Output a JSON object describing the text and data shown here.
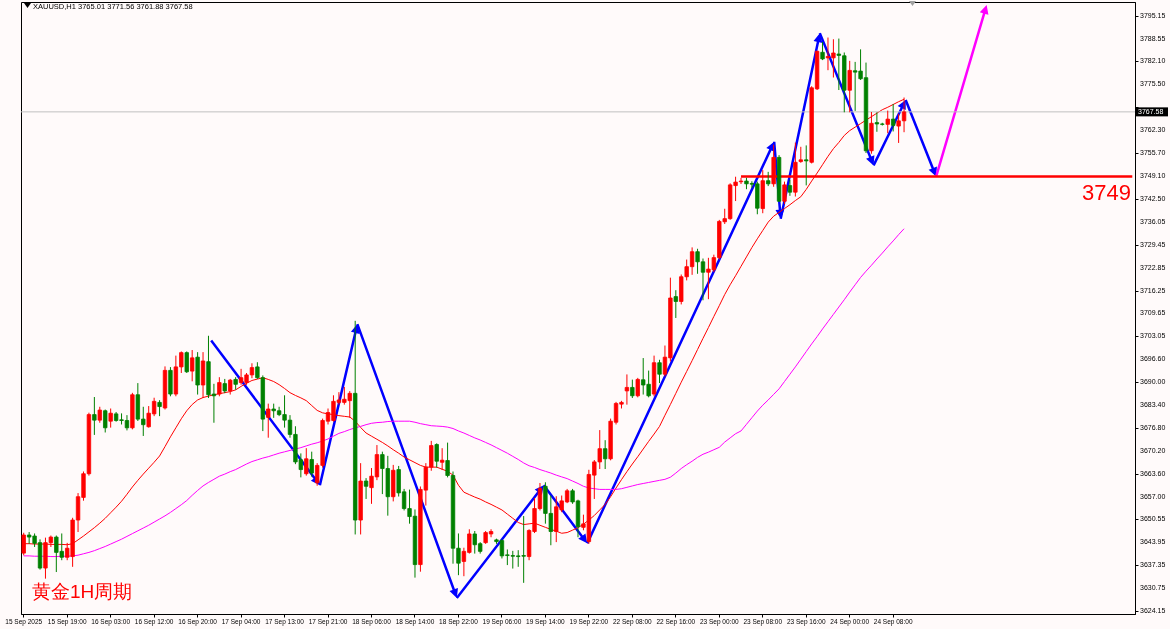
{
  "chart_data": {
    "type": "candlestick",
    "title": "XAUUSD,H1  3765.01 3771.56 3761.88 3767.58",
    "categories": [
      "15 Sep 2025",
      null,
      null,
      null,
      null,
      null,
      null,
      null,
      "15 Sep 19:00",
      null,
      null,
      null,
      null,
      null,
      null,
      null,
      "16 Sep 03:00",
      null,
      null,
      null,
      null,
      null,
      null,
      null,
      "16 Sep 12:00",
      null,
      null,
      null,
      null,
      null,
      null,
      null,
      "16 Sep 20:00",
      null,
      null,
      null,
      null,
      null,
      null,
      null,
      "17 Sep 04:00",
      null,
      null,
      null,
      null,
      null,
      null,
      null,
      "17 Sep 13:00",
      null,
      null,
      null,
      null,
      null,
      null,
      null,
      "17 Sep 21:00",
      null,
      null,
      null,
      null,
      null,
      null,
      null,
      "18 Sep 06:00",
      null,
      null,
      null,
      null,
      null,
      null,
      null,
      "18 Sep 14:00",
      null,
      null,
      null,
      null,
      null,
      null,
      null,
      "18 Sep 22:00",
      null,
      null,
      null,
      null,
      null,
      null,
      null,
      "19 Sep 06:00",
      null,
      null,
      null,
      null,
      null,
      null,
      null,
      "19 Sep 14:00",
      null,
      null,
      null,
      null,
      null,
      null,
      null,
      "19 Sep 22:00",
      null,
      null,
      null,
      null,
      null,
      null,
      null,
      "22 Sep 08:00",
      null,
      null,
      null,
      null,
      null,
      null,
      null,
      "22 Sep 16:00",
      null,
      null,
      null,
      null,
      null,
      null,
      null,
      "23 Sep 00:00",
      null,
      null,
      null,
      null,
      null,
      null,
      null,
      "23 Sep 08:00",
      null,
      null,
      null,
      null,
      null,
      null,
      null,
      "23 Sep 16:00",
      null,
      null,
      null,
      null,
      null,
      null,
      null,
      "24 Sep 00:00",
      null,
      null,
      null,
      null,
      null,
      null,
      null,
      "24 Sep 08:00",
      null,
      null,
      null,
      null,
      null,
      null,
      null,
      null,
      null,
      null,
      null,
      null,
      null,
      null,
      null,
      null,
      null,
      null,
      null,
      null,
      null,
      null,
      null,
      null,
      null,
      null,
      null,
      null,
      null,
      null,
      null,
      null,
      null,
      null,
      null,
      null,
      null,
      null,
      null,
      null,
      null,
      null,
      null,
      null
    ],
    "ohlc": [
      [
        3640.8,
        3646.5,
        3640.3,
        3646.0
      ],
      [
        3646.0,
        3646.7,
        3643.6,
        3645.4
      ],
      [
        3645.7,
        3646.3,
        3642.7,
        3643.6
      ],
      [
        3643.8,
        3644.6,
        3636.2,
        3636.5
      ],
      [
        3636.5,
        3645.1,
        3633.6,
        3643.8
      ],
      [
        3643.8,
        3645.7,
        3642.7,
        3645.4
      ],
      [
        3645.4,
        3645.7,
        3635.5,
        3641.0
      ],
      [
        3641.3,
        3646.3,
        3638.9,
        3639.6
      ],
      [
        3639.6,
        3643.6,
        3638.9,
        3642.2
      ],
      [
        3639.8,
        3650.8,
        3637.0,
        3650.3
      ],
      [
        3650.3,
        3657.9,
        3647.0,
        3657.0
      ],
      [
        3656.8,
        3664.1,
        3656.0,
        3663.6
      ],
      [
        3663.6,
        3681.0,
        3663.2,
        3680.6
      ],
      [
        3680.6,
        3685.5,
        3674.9,
        3679.0
      ],
      [
        3679.0,
        3682.7,
        3678.4,
        3681.9
      ],
      [
        3681.7,
        3681.9,
        3675.6,
        3676.8
      ],
      [
        3678.7,
        3682.2,
        3677.0,
        3681.0
      ],
      [
        3680.8,
        3681.2,
        3678.7,
        3678.9
      ],
      [
        3679.1,
        3680.8,
        3677.9,
        3678.9
      ],
      [
        3678.9,
        3680.3,
        3676.2,
        3676.8
      ],
      [
        3676.8,
        3686.7,
        3676.5,
        3686.3
      ],
      [
        3686.3,
        3689.5,
        3678.9,
        3679.3
      ],
      [
        3679.3,
        3682.7,
        3674.6,
        3677.7
      ],
      [
        3677.1,
        3682.9,
        3677.0,
        3681.0
      ],
      [
        3680.8,
        3685.3,
        3680.3,
        3684.4
      ],
      [
        3684.1,
        3684.6,
        3680.3,
        3682.9
      ],
      [
        3682.5,
        3694.3,
        3682.2,
        3693.3
      ],
      [
        3693.3,
        3694.1,
        3686.0,
        3686.5
      ],
      [
        3686.5,
        3697.4,
        3686.0,
        3694.3
      ],
      [
        3694.3,
        3698.6,
        3692.7,
        3698.4
      ],
      [
        3698.4,
        3698.6,
        3692.7,
        3692.9
      ],
      [
        3693.1,
        3699.0,
        3690.3,
        3696.9
      ],
      [
        3697.1,
        3698.4,
        3686.5,
        3689.1
      ],
      [
        3689.1,
        3698.4,
        3685.5,
        3696.0
      ],
      [
        3695.8,
        3703.1,
        3685.5,
        3686.3
      ],
      [
        3686.5,
        3689.3,
        3678.4,
        3686.0
      ],
      [
        3686.5,
        3691.2,
        3686.0,
        3689.8
      ],
      [
        3689.5,
        3690.7,
        3686.9,
        3687.4
      ],
      [
        3687.4,
        3690.7,
        3686.5,
        3690.5
      ],
      [
        3690.7,
        3691.2,
        3687.9,
        3689.3
      ],
      [
        3689.8,
        3693.6,
        3689.3,
        3691.2
      ],
      [
        3689.8,
        3692.4,
        3689.3,
        3692.0
      ],
      [
        3692.0,
        3695.2,
        3691.2,
        3694.1
      ],
      [
        3694.3,
        3695.5,
        3691.0,
        3691.2
      ],
      [
        3691.2,
        3691.7,
        3676.0,
        3679.3
      ],
      [
        3679.8,
        3683.6,
        3674.1,
        3682.2
      ],
      [
        3682.2,
        3683.6,
        3679.8,
        3681.7
      ],
      [
        3681.7,
        3682.7,
        3680.3,
        3680.6
      ],
      [
        3680.6,
        3686.0,
        3677.0,
        3679.0
      ],
      [
        3679.0,
        3680.3,
        3674.1,
        3674.9
      ],
      [
        3674.9,
        3677.1,
        3666.5,
        3667.0
      ],
      [
        3667.6,
        3669.3,
        3662.7,
        3664.8
      ],
      [
        3663.6,
        3670.8,
        3663.2,
        3667.9
      ],
      [
        3667.7,
        3669.8,
        3662.9,
        3663.8
      ],
      [
        3661.0,
        3666.5,
        3660.3,
        3666.0
      ],
      [
        3666.0,
        3679.3,
        3665.5,
        3678.9
      ],
      [
        3678.7,
        3682.2,
        3677.9,
        3681.2
      ],
      [
        3678.9,
        3686.0,
        3678.7,
        3684.4
      ],
      [
        3684.1,
        3686.9,
        3683.6,
        3684.8
      ],
      [
        3684.1,
        3688.4,
        3683.6,
        3685.0
      ],
      [
        3684.6,
        3687.2,
        3679.8,
        3686.7
      ],
      [
        3686.7,
        3707.4,
        3646.3,
        3650.3
      ],
      [
        3650.3,
        3666.5,
        3646.3,
        3661.5
      ],
      [
        3661.5,
        3662.2,
        3656.5,
        3660.0
      ],
      [
        3659.6,
        3665.1,
        3655.1,
        3662.9
      ],
      [
        3662.7,
        3671.7,
        3661.9,
        3669.1
      ],
      [
        3669.1,
        3669.8,
        3657.9,
        3665.1
      ],
      [
        3665.1,
        3668.6,
        3651.7,
        3657.0
      ],
      [
        3657.0,
        3666.0,
        3655.8,
        3664.6
      ],
      [
        3664.8,
        3665.7,
        3657.2,
        3658.1
      ],
      [
        3658.4,
        3659.1,
        3653.2,
        3653.6
      ],
      [
        3653.6,
        3658.9,
        3649.4,
        3651.3
      ],
      [
        3651.4,
        3653.2,
        3633.9,
        3637.5
      ],
      [
        3637.5,
        3659.8,
        3635.6,
        3659.1
      ],
      [
        3658.9,
        3666.5,
        3654.6,
        3665.5
      ],
      [
        3665.5,
        3672.9,
        3664.6,
        3671.7
      ],
      [
        3672.0,
        3672.2,
        3665.5,
        3667.2
      ],
      [
        3666.9,
        3670.8,
        3664.8,
        3667.5
      ],
      [
        3667.4,
        3672.4,
        3662.7,
        3663.1
      ],
      [
        3663.1,
        3664.1,
        3637.9,
        3642.2
      ],
      [
        3642.2,
        3646.3,
        3634.6,
        3637.9
      ],
      [
        3638.4,
        3642.2,
        3634.3,
        3641.3
      ],
      [
        3641.0,
        3647.5,
        3640.8,
        3646.3
      ],
      [
        3646.3,
        3647.0,
        3640.8,
        3643.2
      ],
      [
        3643.5,
        3643.8,
        3640.8,
        3641.3
      ],
      [
        3643.8,
        3647.0,
        3643.6,
        3646.7
      ],
      [
        3646.3,
        3647.5,
        3645.5,
        3647.0
      ],
      [
        3644.6,
        3644.8,
        3643.6,
        3644.1
      ],
      [
        3644.4,
        3644.6,
        3639.4,
        3640.0
      ],
      [
        3640.3,
        3641.7,
        3637.5,
        3640.1
      ],
      [
        3640.1,
        3641.3,
        3636.5,
        3639.9
      ],
      [
        3640.0,
        3641.5,
        3637.0,
        3639.8
      ],
      [
        3640.1,
        3651.3,
        3632.4,
        3639.9
      ],
      [
        3639.8,
        3647.5,
        3638.9,
        3647.3
      ],
      [
        3647.0,
        3656.5,
        3646.7,
        3653.6
      ],
      [
        3653.6,
        3660.8,
        3653.2,
        3659.4
      ],
      [
        3660.0,
        3661.0,
        3649.4,
        3652.2
      ],
      [
        3652.2,
        3657.2,
        3643.2,
        3647.0
      ],
      [
        3647.0,
        3657.0,
        3644.1,
        3654.1
      ],
      [
        3653.2,
        3657.2,
        3652.7,
        3655.8
      ],
      [
        3655.5,
        3659.1,
        3655.3,
        3658.7
      ],
      [
        3658.7,
        3659.1,
        3655.1,
        3655.5
      ],
      [
        3655.8,
        3656.0,
        3645.5,
        3648.4
      ],
      [
        3648.2,
        3651.7,
        3647.5,
        3649.2
      ],
      [
        3644.1,
        3664.6,
        3643.6,
        3663.4
      ],
      [
        3663.2,
        3667.4,
        3656.5,
        3667.0
      ],
      [
        3667.0,
        3676.0,
        3665.1,
        3670.8
      ],
      [
        3670.8,
        3673.1,
        3665.1,
        3667.9
      ],
      [
        3667.9,
        3679.3,
        3667.6,
        3678.7
      ],
      [
        3678.4,
        3684.1,
        3677.9,
        3683.8
      ],
      [
        3683.6,
        3684.4,
        3682.5,
        3684.1
      ],
      [
        3687.4,
        3692.0,
        3683.6,
        3688.4
      ],
      [
        3688.4,
        3690.5,
        3685.5,
        3686.0
      ],
      [
        3686.0,
        3691.0,
        3685.7,
        3690.7
      ],
      [
        3690.6,
        3696.7,
        3686.5,
        3689.1
      ],
      [
        3689.3,
        3693.1,
        3685.7,
        3686.0
      ],
      [
        3686.5,
        3697.4,
        3686.0,
        3695.5
      ],
      [
        3695.5,
        3696.2,
        3689.8,
        3692.2
      ],
      [
        3692.2,
        3700.3,
        3691.7,
        3697.1
      ],
      [
        3696.9,
        3719.8,
        3696.0,
        3714.1
      ],
      [
        3714.5,
        3716.2,
        3708.5,
        3713.1
      ],
      [
        3713.1,
        3720.7,
        3712.4,
        3720.2
      ],
      [
        3720.2,
        3725.0,
        3719.3,
        3723.1
      ],
      [
        3723.1,
        3728.5,
        3720.9,
        3727.4
      ],
      [
        3727.4,
        3728.1,
        3721.2,
        3724.5
      ],
      [
        3724.5,
        3725.3,
        3713.6,
        3721.5
      ],
      [
        3721.5,
        3725.5,
        3713.9,
        3722.4
      ],
      [
        3722.2,
        3726.4,
        3721.7,
        3725.7
      ],
      [
        3725.7,
        3736.4,
        3725.3,
        3736.1
      ],
      [
        3736.0,
        3739.6,
        3735.5,
        3736.9
      ],
      [
        3736.9,
        3746.9,
        3736.7,
        3746.6
      ],
      [
        3746.4,
        3748.8,
        3742.1,
        3747.4
      ],
      [
        3747.5,
        3748.5,
        3747.0,
        3747.7
      ],
      [
        3747.7,
        3748.5,
        3745.5,
        3746.9
      ],
      [
        3747.0,
        3747.5,
        3745.9,
        3746.8
      ],
      [
        3746.9,
        3747.4,
        3738.3,
        3739.9
      ],
      [
        3739.8,
        3750.7,
        3738.6,
        3747.8
      ],
      [
        3747.8,
        3750.2,
        3746.4,
        3746.9
      ],
      [
        3746.9,
        3758.0,
        3746.2,
        3754.5
      ],
      [
        3754.5,
        3755.0,
        3741.9,
        3741.9
      ],
      [
        3741.9,
        3747.4,
        3741.2,
        3746.6
      ],
      [
        3746.4,
        3747.9,
        3743.6,
        3744.5
      ],
      [
        3744.5,
        3758.6,
        3743.4,
        3753.1
      ],
      [
        3753.3,
        3757.4,
        3753.1,
        3753.8
      ],
      [
        3753.8,
        3757.8,
        3746.6,
        3753.5
      ],
      [
        3753.1,
        3774.8,
        3752.9,
        3774.5
      ],
      [
        3774.2,
        3785.0,
        3774.0,
        3785.0
      ],
      [
        3784.7,
        3787.5,
        3782.6,
        3782.8
      ],
      [
        3783.1,
        3788.8,
        3779.7,
        3783.5
      ],
      [
        3783.1,
        3788.3,
        3777.6,
        3784.5
      ],
      [
        3784.2,
        3788.5,
        3774.0,
        3783.8
      ],
      [
        3783.7,
        3784.5,
        3767.6,
        3773.8
      ],
      [
        3773.8,
        3782.1,
        3767.6,
        3779.5
      ],
      [
        3779.4,
        3781.8,
        3768.0,
        3779.0
      ],
      [
        3779.3,
        3785.4,
        3776.9,
        3777.1
      ],
      [
        3777.4,
        3781.6,
        3755.9,
        3756.4
      ],
      [
        3756.4,
        3767.4,
        3755.7,
        3764.3
      ],
      [
        3764.5,
        3767.3,
        3762.0,
        3764.1
      ],
      [
        3764.1,
        3764.3,
        3763.8,
        3764.0
      ],
      [
        3764.0,
        3767.8,
        3761.6,
        3765.5
      ],
      [
        3765.5,
        3769.7,
        3762.1,
        3763.7
      ],
      [
        3763.5,
        3766.9,
        3758.8,
        3765.0
      ],
      [
        3765.01,
        3771.56,
        3761.88,
        3767.58
      ],
      null,
      null,
      null,
      null,
      null,
      null,
      null,
      null,
      null,
      null,
      null,
      null,
      null,
      null,
      null,
      null,
      null,
      null,
      null,
      null,
      null,
      null,
      null,
      null,
      null,
      null,
      null,
      null,
      null,
      null,
      null,
      null,
      null,
      null,
      null,
      null,
      null,
      null,
      null,
      null,
      null,
      null
    ],
    "colors": [
      "#ff0000",
      "#008000",
      "#008000",
      "#008000",
      "#ff0000",
      "#ff0000",
      "#008000",
      "#008000",
      "#ff0000",
      "#ff0000",
      "#ff0000",
      "#ff0000",
      "#ff0000",
      "#008000",
      "#ff0000",
      "#008000",
      "#ff0000",
      "#008000",
      "#008000",
      "#008000",
      "#ff0000",
      "#008000",
      "#008000",
      "#ff0000",
      "#ff0000",
      "#008000",
      "#ff0000",
      "#008000",
      "#ff0000",
      "#ff0000",
      "#008000",
      "#ff0000",
      "#008000",
      "#ff0000",
      "#008000",
      "#008000",
      "#ff0000",
      "#008000",
      "#ff0000",
      "#008000",
      "#ff0000",
      "#ff0000",
      "#ff0000",
      "#008000",
      "#008000",
      "#ff0000",
      "#008000",
      "#008000",
      "#008000",
      "#008000",
      "#008000",
      "#008000",
      "#ff0000",
      "#008000",
      "#ff0000",
      "#ff0000",
      "#ff0000",
      "#ff0000",
      "#ff0000",
      "#ff0000",
      "#ff0000",
      "#008000",
      "#ff0000",
      "#008000",
      "#ff0000",
      "#ff0000",
      "#008000",
      "#008000",
      "#ff0000",
      "#008000",
      "#008000",
      "#008000",
      "#008000",
      "#ff0000",
      "#ff0000",
      "#ff0000",
      "#008000",
      "#ff0000",
      "#008000",
      "#008000",
      "#008000",
      "#ff0000",
      "#ff0000",
      "#008000",
      "#008000",
      "#ff0000",
      "#ff0000",
      "#008000",
      "#008000",
      "#008000",
      "#008000",
      "#008000",
      "#008000",
      "#ff0000",
      "#ff0000",
      "#ff0000",
      "#008000",
      "#008000",
      "#ff0000",
      "#ff0000",
      "#ff0000",
      "#008000",
      "#008000",
      "#ff0000",
      "#ff0000",
      "#ff0000",
      "#ff0000",
      "#008000",
      "#ff0000",
      "#ff0000",
      "#ff0000",
      "#ff0000",
      "#008000",
      "#ff0000",
      "#008000",
      "#008000",
      "#ff0000",
      "#008000",
      "#ff0000",
      "#ff0000",
      "#008000",
      "#ff0000",
      "#ff0000",
      "#ff0000",
      "#008000",
      "#008000",
      "#ff0000",
      "#ff0000",
      "#ff0000",
      "#ff0000",
      "#ff0000",
      "#ff0000",
      "#ff0000",
      "#008000",
      "#008000",
      "#008000",
      "#ff0000",
      "#008000",
      "#ff0000",
      "#008000",
      "#ff0000",
      "#008000",
      "#ff0000",
      "#ff0000",
      "#008000",
      "#ff0000",
      "#ff0000",
      "#008000",
      "#ff0000",
      "#ff0000",
      "#008000",
      "#008000",
      "#ff0000",
      "#008000",
      "#008000",
      "#008000",
      "#ff0000",
      "#008000",
      "#008000",
      "#ff0000",
      "#008000",
      "#ff0000",
      "#ff0000",
      null,
      null,
      null,
      null,
      null,
      null,
      null,
      null,
      null,
      null,
      null,
      null,
      null,
      null,
      null,
      null,
      null,
      null,
      null,
      null,
      null,
      null,
      null,
      null,
      null,
      null,
      null,
      null,
      null,
      null,
      null,
      null,
      null,
      null,
      null,
      null,
      null,
      null,
      null,
      null,
      null,
      null
    ],
    "series": [
      {
        "type": "line",
        "color": "#ff0000",
        "values": [
          3643.5,
          3643.5,
          3643.4,
          3643.4,
          3643.4,
          3643.3,
          3643.3,
          3643.3,
          3643.2,
          3643.5,
          3644.6,
          3645.7,
          3646.9,
          3648.1,
          3649.4,
          3650.8,
          3652.4,
          3654.0,
          3655.7,
          3657.7,
          3659.8,
          3661.7,
          3663.5,
          3665.2,
          3666.9,
          3668.7,
          3671.4,
          3674.2,
          3676.8,
          3679.4,
          3681.7,
          3683.5,
          3684.8,
          3685.5,
          3685.9,
          3686.3,
          3686.6,
          3686.9,
          3687.2,
          3687.7,
          3688.7,
          3689.6,
          3690.4,
          3690.8,
          3691.2,
          3690.7,
          3690.1,
          3689.2,
          3688.1,
          3686.9,
          3686.1,
          3685.4,
          3684.6,
          3683.2,
          3681.8,
          3681.1,
          3680.8,
          3680.6,
          3680.3,
          3680.1,
          3679.9,
          3678.7,
          3676.9,
          3675.3,
          3674.4,
          3673.5,
          3672.6,
          3671.6,
          3670.5,
          3669.5,
          3668.4,
          3667.6,
          3666.8,
          3666.0,
          3665.5,
          3665.5,
          3665.5,
          3664.9,
          3664.3,
          3663.2,
          3660.3,
          3658.3,
          3657.6,
          3656.9,
          3656.3,
          3655.5,
          3654.8,
          3654.0,
          3653.2,
          3652.0,
          3650.8,
          3649.6,
          3649.0,
          3649.2,
          3649.4,
          3648.8,
          3648.2,
          3647.6,
          3647.1,
          3646.5,
          3646.7,
          3647.4,
          3648.1,
          3649.1,
          3650.3,
          3651.6,
          3653.2,
          3654.8,
          3657.0,
          3659.5,
          3661.9,
          3664.2,
          3666.4,
          3668.5,
          3670.7,
          3672.9,
          3675.0,
          3677.2,
          3680.4,
          3683.5,
          3686.7,
          3689.9,
          3693.0,
          3696.1,
          3699.3,
          3702.5,
          3705.6,
          3708.8,
          3711.9,
          3715.1,
          3717.9,
          3720.5,
          3723.2,
          3725.9,
          3728.6,
          3731.1,
          3733.5,
          3735.9,
          3737.6,
          3738.7,
          3739.8,
          3740.9,
          3742.1,
          3743.2,
          3745.3,
          3747.7,
          3750.0,
          3752.4,
          3754.8,
          3757.0,
          3758.8,
          3760.8,
          3762.2,
          3763.2,
          3764.2,
          3765.2,
          3766.2,
          3767.2,
          3768.2,
          3768.9,
          3769.7,
          3770.5,
          3771.2,
          null,
          null,
          null,
          null,
          null,
          null,
          null,
          null,
          null,
          null,
          null,
          null,
          null,
          null,
          null,
          null,
          null,
          null,
          null,
          null,
          null,
          null,
          null,
          null,
          null,
          null,
          null,
          null,
          null,
          null,
          null,
          null,
          null,
          null,
          null,
          null,
          null,
          null,
          null,
          null,
          null,
          null
        ]
      },
      {
        "type": "line",
        "color": "#ff00ff",
        "values": [
          3640.0,
          3640.0,
          3639.9,
          3639.9,
          3639.9,
          3639.8,
          3639.8,
          3639.9,
          3639.9,
          3640.0,
          3640.2,
          3640.6,
          3641.0,
          3641.5,
          3642.1,
          3642.7,
          3643.4,
          3644.1,
          3644.8,
          3645.6,
          3646.4,
          3647.2,
          3648.0,
          3648.8,
          3649.7,
          3650.6,
          3651.5,
          3652.5,
          3653.6,
          3654.7,
          3655.9,
          3657.4,
          3658.8,
          3660.1,
          3661.1,
          3662.0,
          3662.9,
          3663.5,
          3664.2,
          3664.8,
          3665.6,
          3666.4,
          3667.1,
          3667.6,
          3668.1,
          3668.5,
          3669.0,
          3669.5,
          3669.9,
          3670.3,
          3670.7,
          3671.1,
          3671.6,
          3672.1,
          3672.5,
          3673.0,
          3673.6,
          3674.4,
          3675.2,
          3675.7,
          3676.3,
          3676.8,
          3677.2,
          3677.7,
          3678.1,
          3678.3,
          3678.4,
          3678.6,
          3678.7,
          3678.7,
          3678.7,
          3678.7,
          3678.4,
          3678.0,
          3677.7,
          3677.4,
          3677.3,
          3677.2,
          3677.0,
          3676.6,
          3675.9,
          3675.3,
          3674.6,
          3673.9,
          3673.3,
          3672.6,
          3671.9,
          3671.1,
          3670.3,
          3669.5,
          3668.6,
          3667.7,
          3666.7,
          3665.9,
          3665.4,
          3664.8,
          3664.3,
          3663.8,
          3663.2,
          3662.7,
          3662.2,
          3661.5,
          3660.8,
          3660.0,
          3659.5,
          3659.3,
          3659.1,
          3659.1,
          3659.1,
          3659.1,
          3659.3,
          3659.7,
          3660.1,
          3660.5,
          3660.8,
          3661.1,
          3661.4,
          3661.7,
          3662.0,
          3662.6,
          3663.8,
          3665.1,
          3666.2,
          3667.2,
          3668.3,
          3669.2,
          3669.8,
          3670.5,
          3671.2,
          3672.7,
          3673.9,
          3675.1,
          3675.9,
          3677.8,
          3679.7,
          3681.6,
          3683.3,
          3684.8,
          3686.4,
          3688.0,
          3690.1,
          3692.2,
          3694.3,
          3696.5,
          3698.7,
          3700.9,
          3703.0,
          3705.2,
          3707.3,
          3709.4,
          3711.5,
          3713.6,
          3715.8,
          3717.9,
          3720.0,
          3721.8,
          3723.5,
          3725.3,
          3727.0,
          3728.8,
          3730.5,
          3732.3,
          3734.0,
          null,
          null,
          null,
          null,
          null,
          null,
          null,
          null,
          null,
          null,
          null,
          null,
          null,
          null,
          null,
          null,
          null,
          null,
          null,
          null,
          null,
          null,
          null,
          null,
          null,
          null,
          null,
          null,
          null,
          null,
          null,
          null,
          null,
          null,
          null,
          null,
          null,
          null,
          null,
          null,
          null,
          null
        ]
      },
      {
        "type": "line",
        "color": "#ff0000",
        "values": [
          null,
          null,
          null,
          null,
          null,
          null,
          null,
          null,
          null,
          null,
          null,
          null,
          null,
          null,
          null,
          null,
          null,
          null,
          null,
          null,
          null,
          null,
          null,
          null,
          null,
          null,
          null,
          null,
          null,
          null,
          null,
          null,
          null,
          null,
          null,
          null,
          null,
          null,
          null,
          null,
          null,
          null,
          null,
          null,
          null,
          null,
          null,
          null,
          null,
          null,
          null,
          null,
          null,
          null,
          null,
          null,
          null,
          null,
          null,
          null,
          null,
          null,
          null,
          null,
          null,
          null,
          null,
          null,
          null,
          null,
          null,
          null,
          null,
          null,
          null,
          null,
          null,
          null,
          null,
          null,
          null,
          null,
          null,
          null,
          null,
          null,
          null,
          null,
          null,
          null,
          null,
          null,
          null,
          null,
          null,
          null,
          null,
          null,
          null,
          null,
          null,
          null,
          null,
          null,
          null,
          null,
          null,
          null,
          null,
          null,
          null,
          null,
          null,
          null,
          null,
          null,
          null,
          null,
          null,
          null,
          null,
          null,
          null,
          null,
          null,
          null,
          null,
          null,
          null,
          null,
          null,
          null,
          3749,
          3749,
          3749,
          3749,
          3749,
          3749,
          3749,
          3749,
          3749,
          3749,
          3749,
          3749,
          3749,
          3749,
          3749,
          3749,
          3749,
          3749,
          3749,
          3749,
          3749,
          3749,
          3749,
          3749,
          3749,
          3749,
          3749,
          3749,
          3749,
          3749,
          3749,
          3749,
          3749,
          3749,
          3749,
          3749,
          3749,
          3749,
          3749,
          3749,
          3749,
          3749,
          3749,
          3749,
          3749,
          3749,
          3749,
          3749,
          3749,
          3749,
          3749,
          3749,
          3749,
          3749,
          3749,
          3749,
          3749,
          3749,
          3749,
          3749,
          3749,
          3749,
          3749,
          3749,
          3749,
          3749,
          3749,
          3749,
          3749,
          3749,
          3749,
          3749,
          3749
        ]
      }
    ],
    "ylim": [
      3623.3,
      3799.15
    ],
    "yticks": [
      3795.15,
      3788.55,
      {
        "value": 3782.1,
        "label": "3782.10"
      },
      {
        "value": 3775.5,
        "label": "3775.50"
      },
      {
        "value": 3768.9,
        "label": null
      },
      {
        "value": 3762.3,
        "label": "3762.30"
      },
      {
        "value": 3755.7,
        "label": "3755.70"
      },
      {
        "value": 3749.1,
        "label": "3749.10"
      },
      {
        "value": 3742.5,
        "label": "3742.50"
      },
      3736.05,
      3729.45,
      3722.85,
      3716.25,
      3709.65,
      3703.05,
      {
        "value": 3696.6,
        "label": "3696.60"
      },
      {
        "value": 3690,
        "label": "3690.00"
      },
      {
        "value": 3683.4,
        "label": "3683.40"
      },
      {
        "value": 3676.8,
        "label": "3676.80"
      },
      {
        "value": 3670.2,
        "label": "3670.20"
      },
      {
        "value": 3663.6,
        "label": "3663.60"
      },
      {
        "value": 3657,
        "label": "3657.00"
      },
      3650.55,
      3643.95,
      3637.35,
      3630.75,
      3624.15
    ],
    "ref_lines": [
      {
        "axis": "y",
        "value": 3767.58,
        "label": "3767.58",
        "color": "#c0c0c0"
      }
    ],
    "annotations": [
      "黄金1H周期",
      {
        "text": "3749",
        "y": 3749
      }
    ]
  }
}
